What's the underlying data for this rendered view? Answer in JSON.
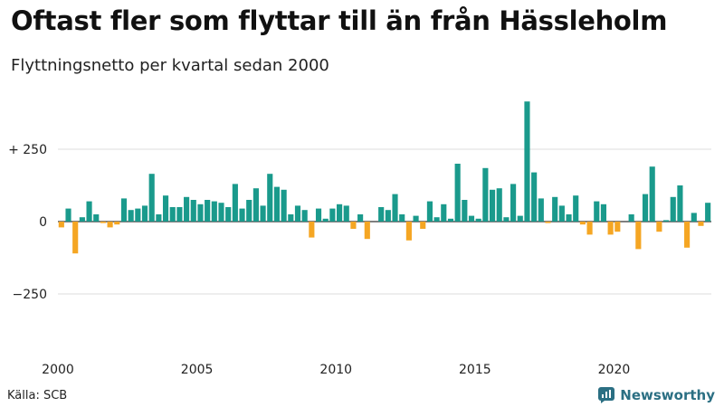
{
  "header": {
    "title": "Oftast fler som flyttar till än från Hässleholm",
    "subtitle": "Flyttningsnetto per kvartal sedan 2000"
  },
  "footer": {
    "source": "Källa: SCB",
    "brand": "Newsworthy"
  },
  "colors": {
    "positive": "#1a9a8c",
    "negative": "#f5a623",
    "grid": "#dddddd",
    "brand": "#2b6f83"
  },
  "chart_data": {
    "type": "bar",
    "title": "Oftast fler som flyttar till än från Hässleholm",
    "subtitle": "Flyttningsnetto per kvartal sedan 2000",
    "xlabel": "",
    "ylabel": "",
    "ylim": [
      -450,
      450
    ],
    "yticks": [
      {
        "value": 250,
        "label": "+ 250"
      },
      {
        "value": 0,
        "label": "0"
      },
      {
        "value": -250,
        "label": "−250"
      }
    ],
    "xticks": [
      {
        "year": 2000,
        "label": "2000"
      },
      {
        "year": 2005,
        "label": "2005"
      },
      {
        "year": 2010,
        "label": "2010"
      },
      {
        "year": 2015,
        "label": "2015"
      },
      {
        "year": 2020,
        "label": "2020"
      }
    ],
    "start": {
      "year": 2000,
      "quarter": 1
    },
    "series": [
      {
        "name": "Flyttningsnetto",
        "values": [
          -20,
          45,
          -110,
          15,
          70,
          25,
          -5,
          -20,
          -10,
          80,
          40,
          45,
          55,
          165,
          25,
          90,
          50,
          50,
          85,
          75,
          60,
          75,
          70,
          65,
          50,
          130,
          45,
          75,
          115,
          55,
          165,
          120,
          110,
          25,
          55,
          40,
          -55,
          45,
          10,
          45,
          60,
          55,
          -25,
          25,
          -60,
          0,
          50,
          40,
          95,
          25,
          -65,
          20,
          -25,
          70,
          15,
          60,
          10,
          200,
          75,
          20,
          10,
          185,
          110,
          115,
          15,
          130,
          20,
          415,
          170,
          80,
          -5,
          85,
          55,
          25,
          90,
          -10,
          -45,
          70,
          60,
          -45,
          -35,
          0,
          25,
          -95,
          95,
          190,
          -35,
          5,
          85,
          125,
          -90,
          30,
          -15,
          65
        ]
      }
    ]
  }
}
